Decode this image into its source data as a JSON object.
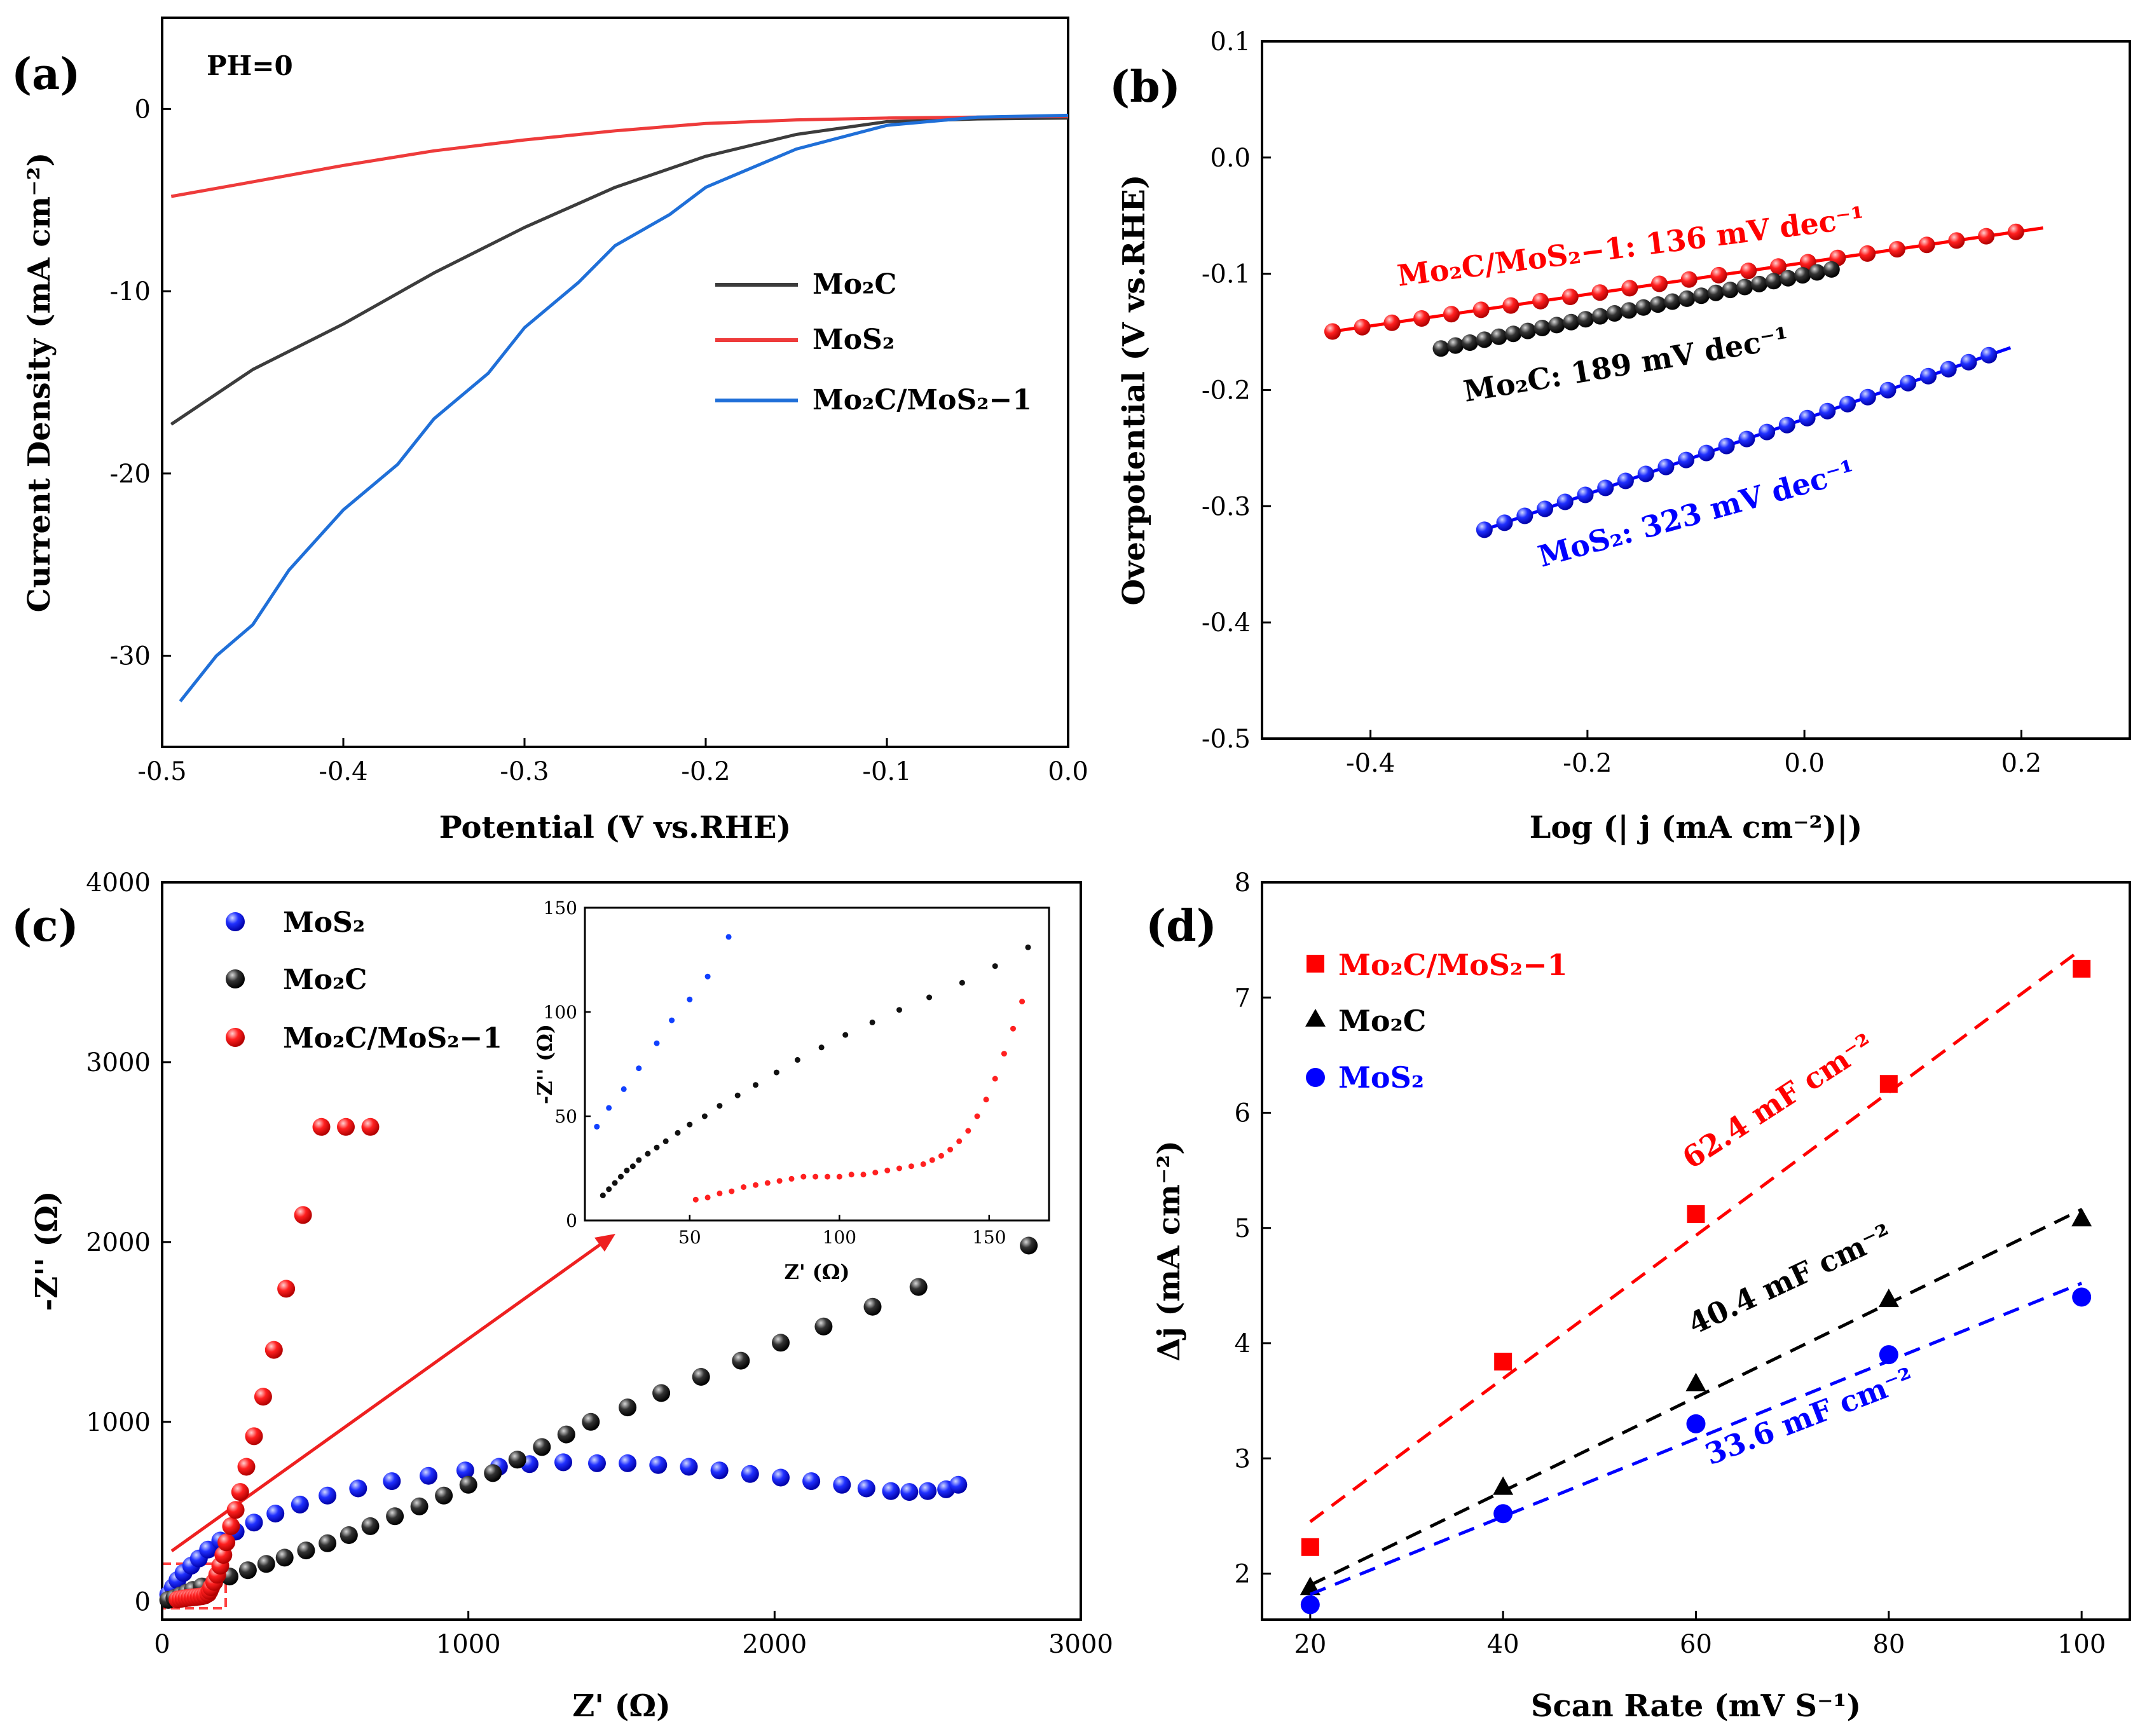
{
  "colors": {
    "red": "#ff0000",
    "black": "#000000",
    "blue": "#0000ff",
    "blue_line": "#1f6fd8",
    "gray_line": "#3c3c3c",
    "red_line": "#ee3b3b",
    "axis": "#000000"
  },
  "chart_data": [
    {
      "id": "a",
      "type": "line",
      "panel_label": "(a)",
      "annotation": "PH=0",
      "xlabel": "Potential (V vs.RHE)",
      "ylabel": "Current Density (mA cm⁻²)",
      "xlim": [
        -0.5,
        0.0
      ],
      "ylim": [
        -35,
        5
      ],
      "xticks": [
        "-0.5",
        "-0.4",
        "-0.3",
        "-0.2",
        "-0.1",
        "0.0"
      ],
      "yticks": [
        "-30",
        "-20",
        "-10",
        "0"
      ],
      "legend": [
        "Mo₂C",
        "MoS₂",
        "Mo₂C/MoS₂−1"
      ],
      "series": [
        {
          "name": "Mo₂C",
          "x": [
            -0.495,
            -0.45,
            -0.4,
            -0.35,
            -0.3,
            -0.25,
            -0.2,
            -0.15,
            -0.1,
            -0.05,
            0.0
          ],
          "y": [
            -17.3,
            -14.3,
            -11.8,
            -9.0,
            -6.5,
            -4.3,
            -2.6,
            -1.4,
            -0.7,
            -0.55,
            -0.5
          ]
        },
        {
          "name": "MoS₂",
          "x": [
            -0.495,
            -0.45,
            -0.4,
            -0.35,
            -0.3,
            -0.25,
            -0.2,
            -0.15,
            -0.1,
            -0.05,
            0.0
          ],
          "y": [
            -4.8,
            -4.0,
            -3.1,
            -2.3,
            -1.7,
            -1.2,
            -0.8,
            -0.6,
            -0.5,
            -0.45,
            -0.4
          ]
        },
        {
          "name": "Mo₂C/MoS₂−1",
          "x": [
            -0.49,
            -0.47,
            -0.45,
            -0.43,
            -0.4,
            -0.37,
            -0.35,
            -0.32,
            -0.3,
            -0.27,
            -0.25,
            -0.22,
            -0.2,
            -0.15,
            -0.1,
            -0.05,
            0.0
          ],
          "y": [
            -32.5,
            -30.0,
            -28.3,
            -25.3,
            -22.0,
            -19.5,
            -17.0,
            -14.5,
            -12.0,
            -9.5,
            -7.5,
            -5.8,
            -4.3,
            -2.2,
            -0.9,
            -0.45,
            -0.35
          ]
        }
      ]
    },
    {
      "id": "b",
      "type": "scatter",
      "panel_label": "(b)",
      "xlabel": "Log (| j (mA cm⁻²)|)",
      "ylabel": "Overpotential (V vs.RHE)",
      "xlim": [
        -0.5,
        0.3
      ],
      "ylim": [
        -0.5,
        0.1
      ],
      "xticks": [
        "-0.4",
        "-0.2",
        "0.0",
        "0.2"
      ],
      "yticks": [
        "-0.5",
        "-0.4",
        "-0.3",
        "-0.2",
        "-0.1",
        "0.0",
        "0.1"
      ],
      "annotations": [
        "Mo₂C/MoS₂−1: 136 mV dec⁻¹",
        "Mo₂C: 189 mV dec⁻¹",
        "MoS₂: 323 mV dec⁻¹"
      ],
      "series": [
        {
          "name": "Mo₂C/MoS₂−1",
          "x_range": [
            -0.435,
            0.195
          ],
          "n": 24,
          "slope": 0.136,
          "intercept": -0.0905,
          "fit_x": [
            -0.44,
            0.22
          ]
        },
        {
          "name": "Mo₂C",
          "x_range": [
            -0.335,
            0.025
          ],
          "n": 28,
          "slope": 0.189,
          "intercept": -0.101,
          "fit_x": [
            -0.34,
            0.03
          ]
        },
        {
          "name": "MoS₂",
          "x_range": [
            -0.295,
            0.17
          ],
          "n": 26,
          "slope": 0.323,
          "intercept": -0.225,
          "fit_x": [
            -0.3,
            0.19
          ]
        }
      ]
    },
    {
      "id": "c",
      "type": "scatter",
      "panel_label": "(c)",
      "xlabel": "Z' (Ω)",
      "ylabel": "-Z'' (Ω)",
      "xlim": [
        0,
        3000
      ],
      "ylim": [
        -100,
        4000
      ],
      "xticks": [
        "0",
        "1000",
        "2000",
        "3000"
      ],
      "yticks": [
        "0",
        "1000",
        "2000",
        "3000",
        "4000"
      ],
      "legend": [
        "MoS₂",
        "Mo₂C",
        "Mo₂C/MoS₂−1"
      ],
      "series": [
        {
          "name": "MoS₂",
          "x": [
            20,
            35,
            50,
            70,
            95,
            120,
            150,
            190,
            240,
            300,
            370,
            450,
            540,
            640,
            750,
            870,
            990,
            1100,
            1200,
            1310,
            1420,
            1520,
            1620,
            1720,
            1820,
            1920,
            2020,
            2120,
            2220,
            2300,
            2380,
            2440,
            2500,
            2560,
            2600
          ],
          "y": [
            40,
            80,
            120,
            160,
            200,
            240,
            290,
            340,
            390,
            440,
            490,
            540,
            590,
            630,
            670,
            700,
            730,
            750,
            765,
            775,
            770,
            770,
            760,
            750,
            730,
            710,
            690,
            670,
            650,
            630,
            615,
            610,
            615,
            625,
            650
          ]
        },
        {
          "name": "Mo₂C",
          "x": [
            20,
            40,
            60,
            80,
            100,
            130,
            170,
            220,
            280,
            340,
            400,
            470,
            540,
            610,
            680,
            760,
            840,
            920,
            1000,
            1080,
            1160,
            1240,
            1320,
            1400,
            1520,
            1630,
            1760,
            1890,
            2020,
            2160,
            2320,
            2470,
            2830
          ],
          "y": [
            10,
            20,
            35,
            50,
            65,
            85,
            110,
            140,
            175,
            210,
            245,
            285,
            325,
            370,
            420,
            475,
            530,
            590,
            650,
            715,
            790,
            860,
            930,
            1000,
            1080,
            1160,
            1250,
            1340,
            1440,
            1530,
            1640,
            1750,
            1980
          ]
        },
        {
          "name": "Mo₂C/MoS₂−1",
          "x": [
            50,
            60,
            70,
            80,
            90,
            100,
            110,
            120,
            130,
            140,
            150,
            155,
            160,
            170,
            180,
            190,
            200,
            210,
            225,
            240,
            255,
            275,
            300,
            330,
            365,
            405,
            460,
            520,
            600,
            680
          ],
          "y": [
            12,
            15,
            18,
            20,
            22,
            24,
            26,
            28,
            30,
            35,
            45,
            60,
            80,
            110,
            150,
            200,
            260,
            330,
            420,
            510,
            610,
            750,
            920,
            1140,
            1400,
            1740,
            2150,
            2640,
            2640,
            2640
          ]
        }
      ],
      "inset": {
        "xlim": [
          15,
          170
        ],
        "ylim": [
          0,
          150
        ],
        "xlabel": "Z' (Ω)",
        "ylabel": "-Z'' (Ω)",
        "xticks": [
          "50",
          "100",
          "150"
        ],
        "yticks": [
          "0",
          "50",
          "100",
          "150"
        ],
        "series": [
          {
            "name": "MoS₂",
            "x": [
              19,
              23,
              28,
              33,
              39,
              44,
              50,
              56,
              63
            ],
            "y": [
              45,
              54,
              63,
              73,
              85,
              96,
              106,
              117,
              136
            ]
          },
          {
            "name": "Mo₂C",
            "x": [
              21,
              23,
              25,
              27,
              29,
              31,
              33,
              36,
              39,
              42,
              46,
              50,
              55,
              60,
              66,
              72,
              79,
              86,
              94,
              102,
              111,
              120,
              130,
              141,
              152,
              163
            ],
            "y": [
              12,
              15,
              18,
              21,
              24,
              26,
              29,
              32,
              35,
              38,
              42,
              46,
              50,
              55,
              60,
              65,
              71,
              77,
              83,
              89,
              95,
              101,
              107,
              114,
              122,
              131
            ]
          },
          {
            "name": "Mo₂C/MoS₂−1",
            "x": [
              52,
              56,
              60,
              64,
              68,
              72,
              76,
              80,
              84,
              88,
              92,
              96,
              100,
              104,
              108,
              112,
              116,
              120,
              124,
              128,
              131,
              134,
              137,
              140,
              143,
              146,
              149,
              152,
              155,
              158,
              161
            ],
            "y": [
              10,
              11,
              13,
              14,
              16,
              17,
              18,
              19,
              20,
              21,
              21,
              21,
              21,
              22,
              22,
              23,
              24,
              25,
              26,
              27,
              29,
              31,
              34,
              38,
              43,
              50,
              58,
              68,
              80,
              92,
              105
            ]
          }
        ]
      }
    },
    {
      "id": "d",
      "type": "scatter",
      "panel_label": "(d)",
      "xlabel": "Scan Rate (mV S⁻¹)",
      "ylabel": "Δj (mA cm⁻²)",
      "xlim": [
        15,
        105
      ],
      "ylim": [
        1.6,
        8
      ],
      "xticks": [
        "20",
        "40",
        "60",
        "80",
        "100"
      ],
      "yticks": [
        "2",
        "3",
        "4",
        "5",
        "6",
        "7",
        "8"
      ],
      "legend": [
        "Mo₂C/MoS₂−1",
        "Mo₂C",
        "MoS₂"
      ],
      "annotations": [
        "62.4 mF cm⁻²",
        "40.4 mF cm⁻²",
        "33.6 mF cm⁻²"
      ],
      "series": [
        {
          "name": "Mo₂C/MoS₂−1",
          "marker": "square",
          "x": [
            20,
            40,
            60,
            80,
            100
          ],
          "y": [
            2.23,
            3.84,
            5.12,
            6.25,
            7.25
          ],
          "fit": [
            [
              20,
              2.45
            ],
            [
              100,
              7.42
            ]
          ]
        },
        {
          "name": "Mo₂C",
          "marker": "triangle",
          "x": [
            20,
            40,
            60,
            80,
            100
          ],
          "y": [
            1.88,
            2.75,
            3.65,
            4.38,
            5.08
          ],
          "fit": [
            [
              20,
              1.9
            ],
            [
              100,
              5.16
            ]
          ]
        },
        {
          "name": "MoS₂",
          "marker": "circle",
          "x": [
            20,
            40,
            60,
            80,
            100
          ],
          "y": [
            1.73,
            2.52,
            3.3,
            3.9,
            4.4
          ],
          "fit": [
            [
              20,
              1.82
            ],
            [
              100,
              4.52
            ]
          ]
        }
      ]
    }
  ]
}
